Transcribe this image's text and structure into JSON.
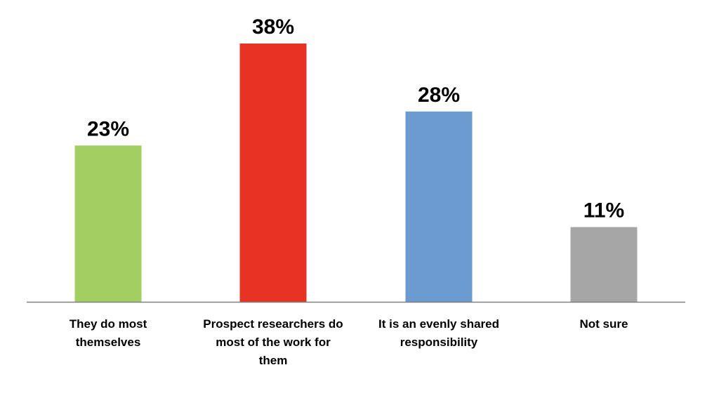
{
  "chart_data": {
    "type": "bar",
    "categories": [
      [
        "They do most",
        "themselves"
      ],
      [
        "Prospect researchers do",
        "most of the work for",
        "them"
      ],
      [
        "It is an evenly shared",
        "responsibility"
      ],
      [
        "Not sure"
      ]
    ],
    "values": [
      23,
      38,
      28,
      11
    ],
    "value_labels": [
      "23%",
      "38%",
      "28%",
      "11%"
    ],
    "colors": [
      "#A3CF62",
      "#E83324",
      "#6B9BD1",
      "#A6A6A6"
    ],
    "axis_color": "#808080",
    "title": "",
    "xlabel": "",
    "ylabel": "",
    "ylim": [
      0,
      38
    ],
    "grid": false,
    "legend": "none"
  }
}
